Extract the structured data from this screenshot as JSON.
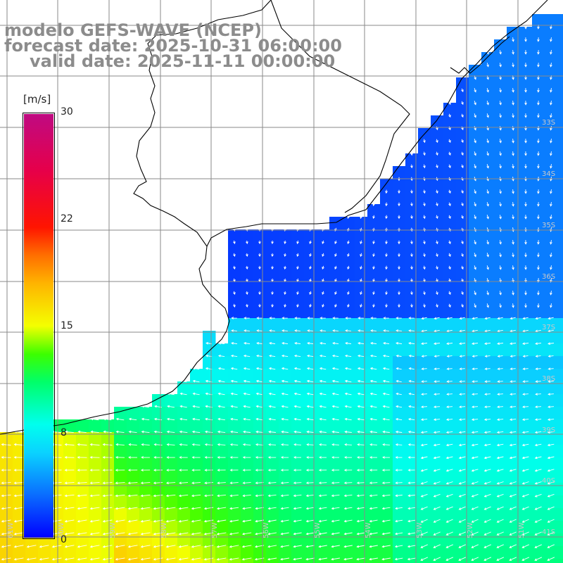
{
  "title": {
    "line1": "modelo GEFS-WAVE (NCEP)",
    "line2": "forecast date: 2025-10-31 06:00:00",
    "line3": "valid date: 2025-11-11 00:00:00"
  },
  "colorbar": {
    "unit": "[m/s]",
    "ticks": [
      "30",
      "22",
      "15",
      "8",
      "0"
    ],
    "tick_values": [
      30,
      22,
      15,
      8,
      0
    ],
    "stops": [
      {
        "v": 0,
        "color": "#0000ff"
      },
      {
        "v": 3,
        "color": "#0a6cff"
      },
      {
        "v": 6,
        "color": "#0ad2ff"
      },
      {
        "v": 8,
        "color": "#00ffee"
      },
      {
        "v": 11,
        "color": "#00ff6a"
      },
      {
        "v": 13,
        "color": "#3cff00"
      },
      {
        "v": 15,
        "color": "#f4ff00"
      },
      {
        "v": 18,
        "color": "#ffb400"
      },
      {
        "v": 20,
        "color": "#ff6e00"
      },
      {
        "v": 22,
        "color": "#ff1400"
      },
      {
        "v": 26,
        "color": "#e6004a"
      },
      {
        "v": 30,
        "color": "#bf0a82"
      }
    ]
  },
  "grid": {
    "lat_labels": [
      "33S",
      "34S",
      "35S",
      "36S",
      "37S",
      "38S",
      "39S",
      "40S",
      "41S"
    ],
    "lon_labels": [
      "61W",
      "60W",
      "59W",
      "58W",
      "57W",
      "56W",
      "55W",
      "54W",
      "53W",
      "52W",
      "51W"
    ],
    "line_color": "#8a8a8a"
  },
  "colors": {
    "title": "#8c8c8c",
    "coast": "#000000",
    "arrows": "#ffffff",
    "land": "#ffffff"
  }
}
